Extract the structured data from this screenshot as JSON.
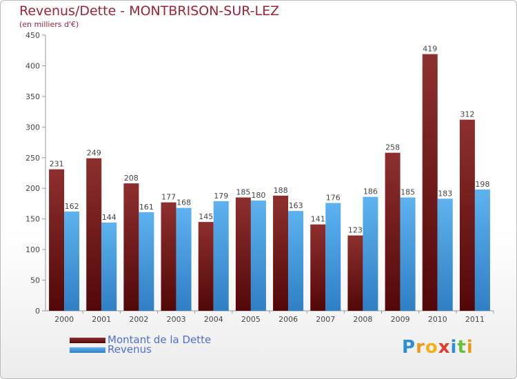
{
  "header": {
    "title": "Revenus/Dette - MONTBRISON-SUR-LEZ",
    "subtitle": "(en milliers d'€)"
  },
  "chart_data": {
    "type": "bar",
    "categories": [
      "2000",
      "2001",
      "2002",
      "2003",
      "2004",
      "2005",
      "2006",
      "2007",
      "2008",
      "2009",
      "2010",
      "2011"
    ],
    "series": [
      {
        "name": "Montant de la Dette",
        "values": [
          231,
          249,
          208,
          177,
          145,
          185,
          188,
          141,
          123,
          258,
          419,
          312
        ],
        "color": "#7a1a1a"
      },
      {
        "name": "Revenus",
        "values": [
          162,
          144,
          161,
          168,
          179,
          180,
          163,
          176,
          186,
          185,
          183,
          198
        ],
        "color": "#4a9fe0"
      }
    ],
    "ylim": [
      0,
      450
    ],
    "yticks": [
      "0",
      "50",
      "100",
      "150",
      "200",
      "250",
      "300",
      "350",
      "400",
      "450"
    ],
    "grid": false,
    "legend": "bottom-left"
  },
  "brand": {
    "letters": [
      "P",
      "r",
      "o",
      "x",
      "i",
      "t",
      "i"
    ],
    "colors": [
      "#2b8fd6",
      "#e89a1c",
      "#f0b21a",
      "#e23c2a",
      "#2b8fd6",
      "#6bbf3a",
      "#e89a1c"
    ]
  }
}
